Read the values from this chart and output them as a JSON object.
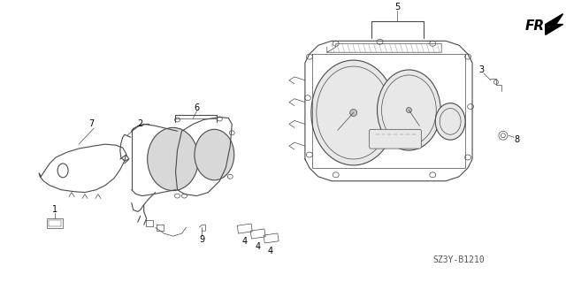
{
  "bg_color": "#ffffff",
  "fig_width": 6.4,
  "fig_height": 3.19,
  "dpi": 100,
  "diagram_code": "SZ3Y-B1210",
  "line_color": "#4a4a4a",
  "label_color": "#000000",
  "label_fontsize": 7,
  "diagram_code_fontsize": 7,
  "fr_fontsize": 11
}
